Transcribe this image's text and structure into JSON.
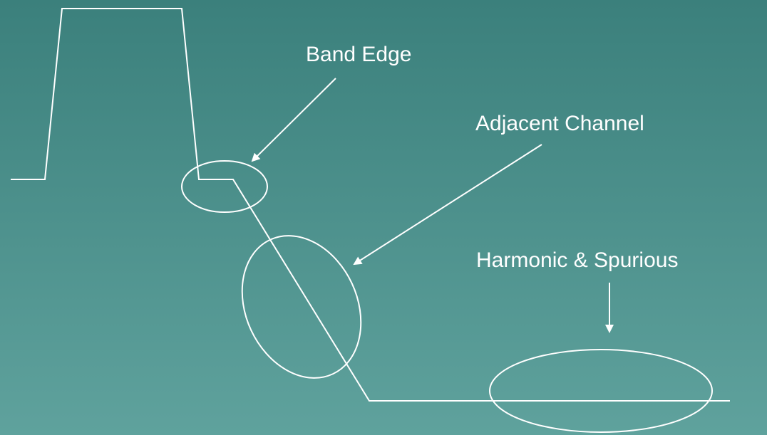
{
  "labels": {
    "band_edge": "Band Edge",
    "adjacent_channel": "Adjacent Channel",
    "harmonic_spurious": "Harmonic & Spurious"
  }
}
